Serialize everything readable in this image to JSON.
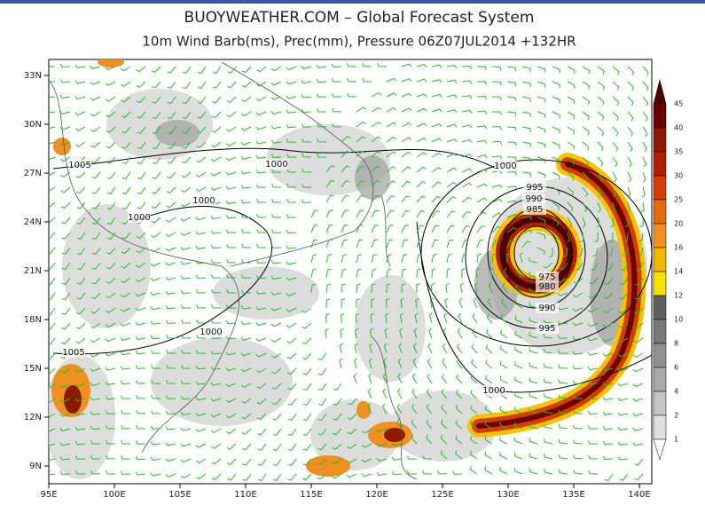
{
  "header": {
    "title": "BUOYWEATHER.COM  –  Global Forecast System",
    "subtitle": "10m Wind Barb(ms), Prec(mm), Pressure 06Z07JUL2014 +132HR"
  },
  "map": {
    "lat_labels": [
      "33N",
      "30N",
      "27N",
      "24N",
      "21N",
      "18N",
      "15N",
      "12N",
      "9N"
    ],
    "lon_labels": [
      "95E",
      "100E",
      "105E",
      "110E",
      "115E",
      "120E",
      "125E",
      "130E",
      "135E",
      "140E"
    ],
    "isobar_labels": [
      "1005",
      "1000",
      "1000",
      "1000",
      "1000",
      "995",
      "990",
      "985",
      "975",
      "980",
      "990",
      "995",
      "1000",
      "1005",
      "1000"
    ]
  },
  "colorbar": {
    "labels": [
      45,
      40,
      35,
      30,
      25,
      20,
      16,
      14,
      12,
      10,
      8,
      6,
      4,
      2,
      1
    ]
  }
}
